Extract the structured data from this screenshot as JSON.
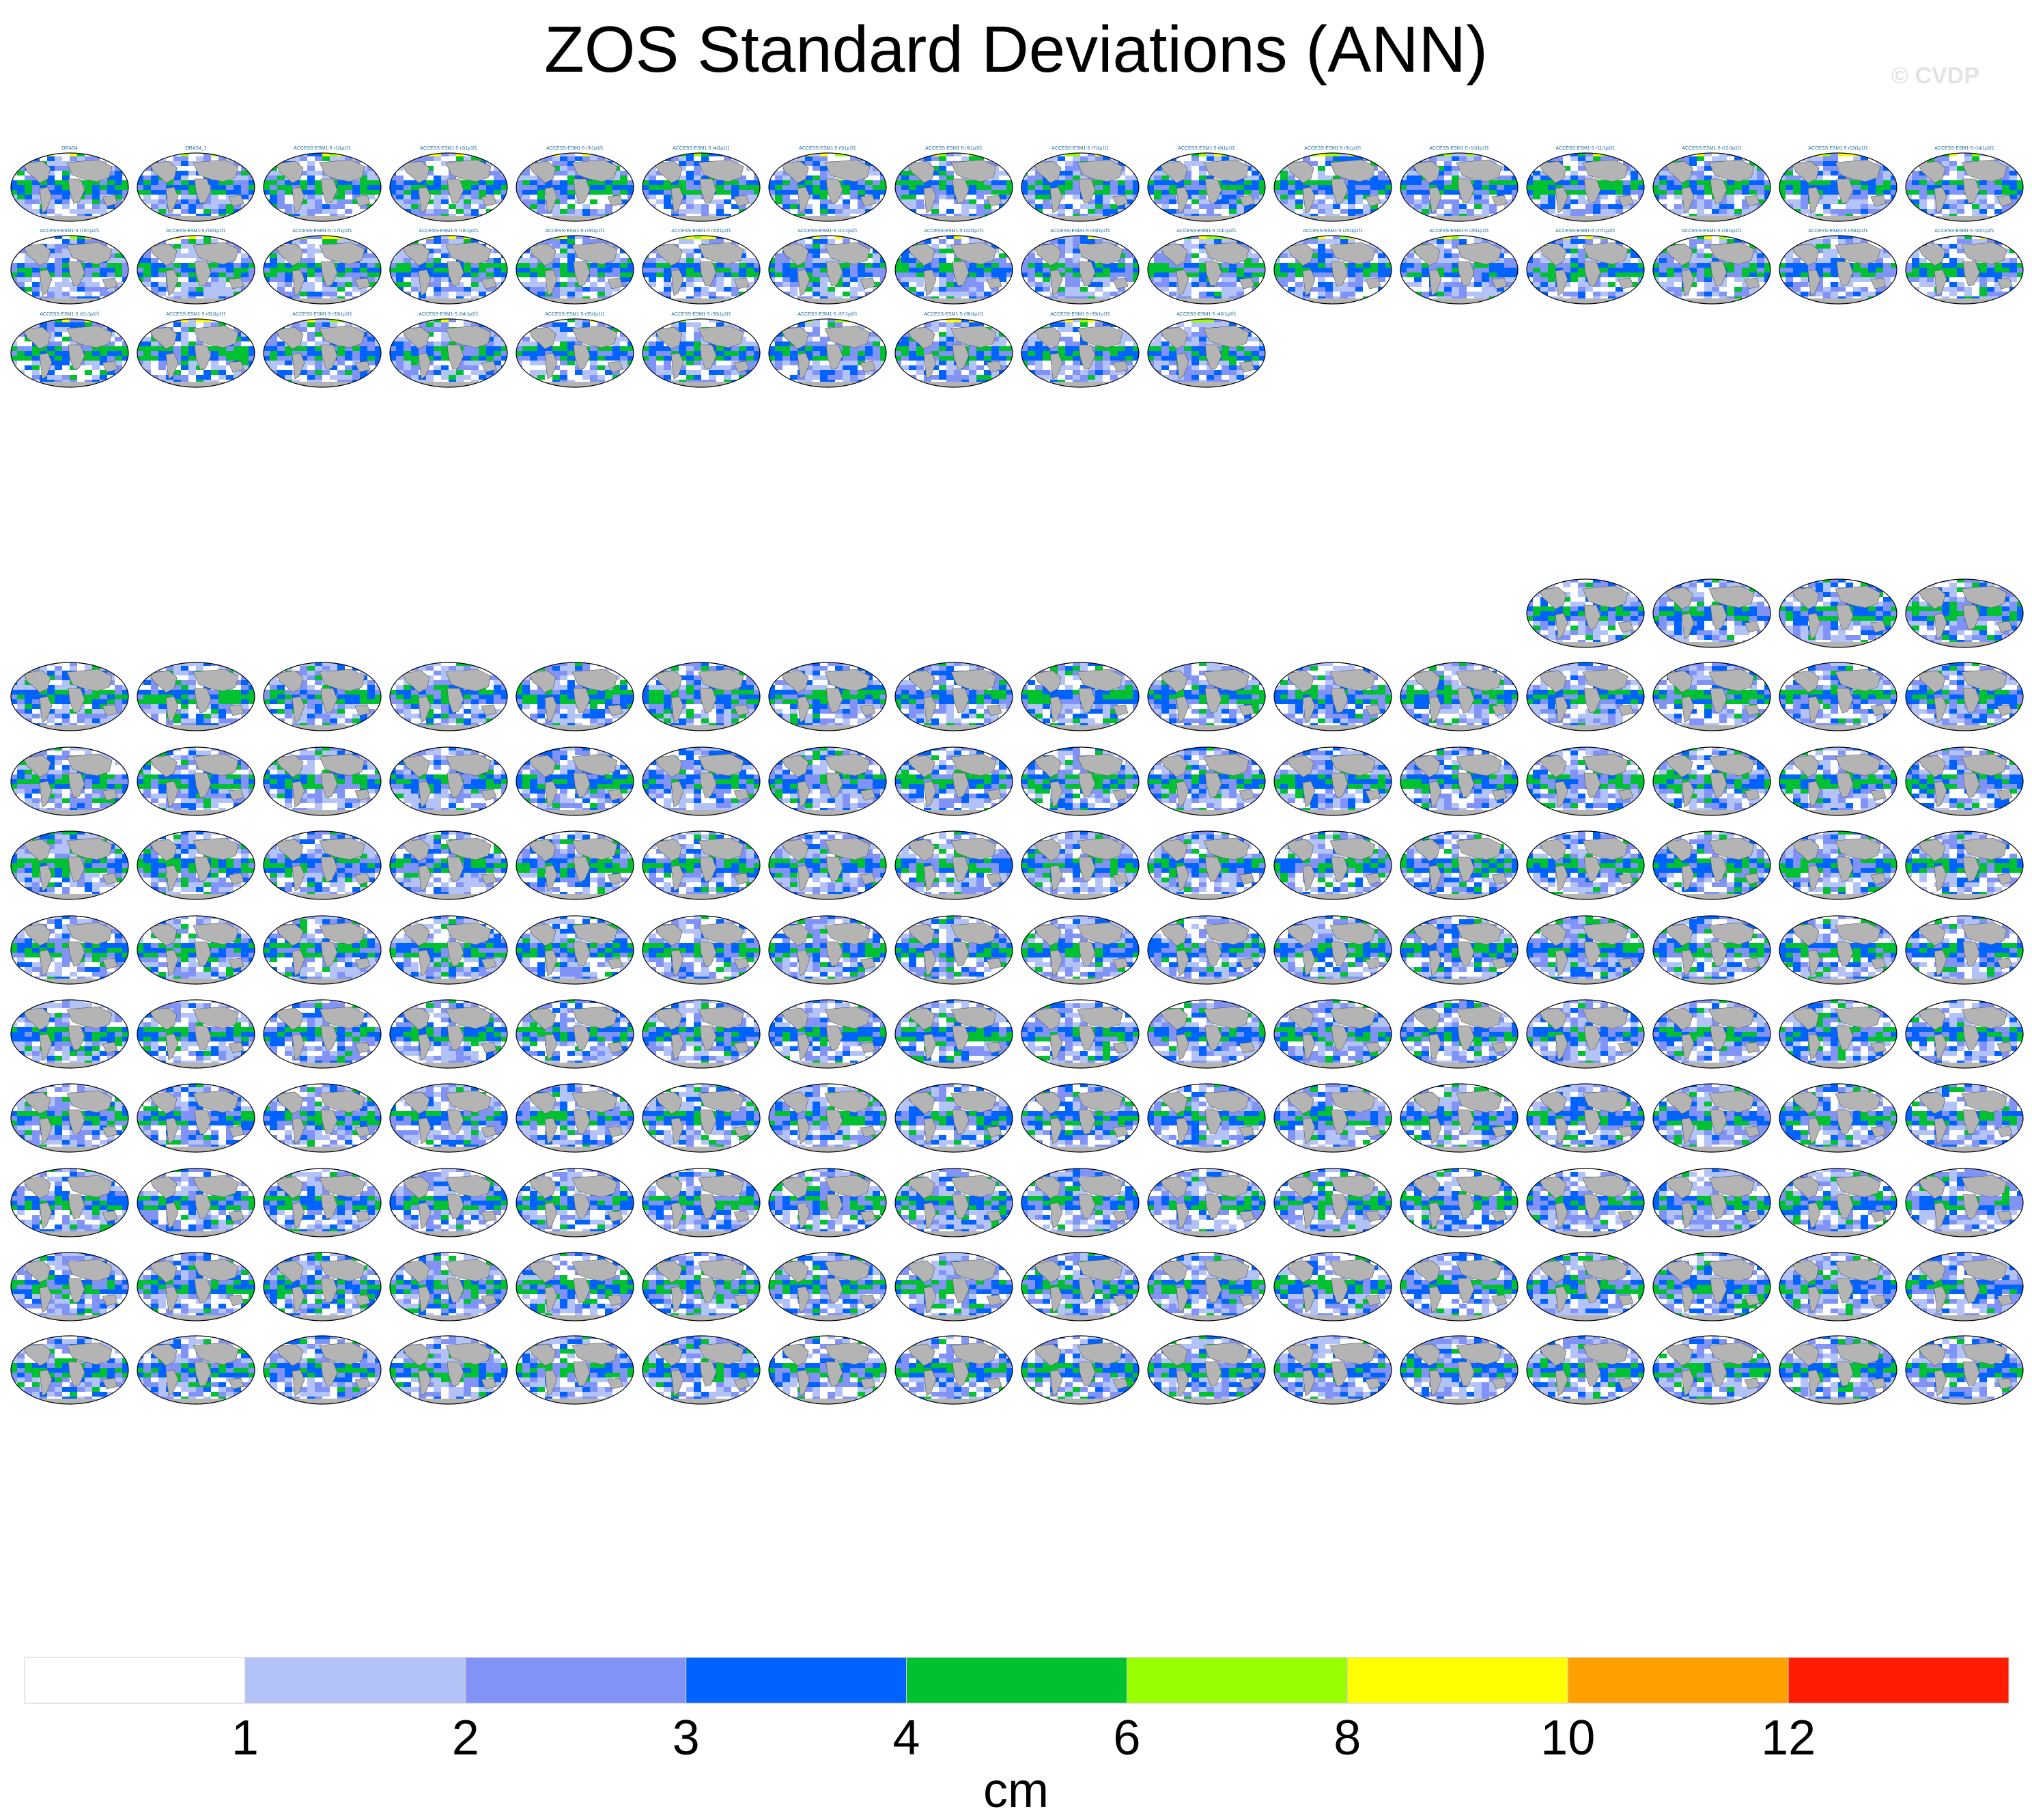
{
  "title": "ZOS Standard Deviations (ANN)",
  "credit": "© CVDP",
  "chart_data": {
    "type": "heatmap",
    "title": "ZOS Standard Deviations (ANN)",
    "panel_map": "global ocean sea-surface-height standard deviation (annual)",
    "colorbar": {
      "label": "cm",
      "ticks": [
        1,
        2,
        3,
        4,
        6,
        8,
        10,
        12
      ],
      "bins": [
        {
          "range": "<1",
          "color": "#ffffff"
        },
        {
          "range": "1-2",
          "color": "#b3c3f7"
        },
        {
          "range": "2-3",
          "color": "#8193f7"
        },
        {
          "range": "3-4",
          "color": "#0062ff"
        },
        {
          "range": "4-6",
          "color": "#00c230"
        },
        {
          "range": "6-8",
          "color": "#98ff00"
        },
        {
          "range": "8-10",
          "color": "#ffff00"
        },
        {
          "range": "10-12",
          "color": "#ffa000"
        },
        {
          "range": ">12",
          "color": "#ff1c00"
        }
      ]
    },
    "panel_groups": [
      {
        "rows": [
          {
            "count": 16,
            "labels": [
              "ORAS4",
              "ORAS4_1",
              "ACCESS-ESM1-5 r1i1p1f1",
              "ACCESS-ESM1-5 r2i1p1f1",
              "ACCESS-ESM1-5 r3i1p1f1",
              "ACCESS-ESM1-5 r4i1p1f1",
              "ACCESS-ESM1-5 r5i1p1f1",
              "ACCESS-ESM1-5 r6i1p1f1",
              "ACCESS-ESM1-5 r7i1p1f1",
              "ACCESS-ESM1-5 r8i1p1f1",
              "ACCESS-ESM1-5 r9i1p1f1",
              "ACCESS-ESM1-5 r10i1p1f1",
              "ACCESS-ESM1-5 r11i1p1f1",
              "ACCESS-ESM1-5 r12i1p1f1",
              "ACCESS-ESM1-5 r13i1p1f1",
              "ACCESS-ESM1-5 r14i1p1f1"
            ]
          },
          {
            "count": 16,
            "labels": [
              "ACCESS-ESM1-5 r15i1p1f1",
              "ACCESS-ESM1-5 r16i1p1f1",
              "ACCESS-ESM1-5 r17i1p1f1",
              "ACCESS-ESM1-5 r18i1p1f1",
              "ACCESS-ESM1-5 r19i1p1f1",
              "ACCESS-ESM1-5 r20i1p1f1",
              "ACCESS-ESM1-5 r21i1p1f1",
              "ACCESS-ESM1-5 r22i1p1f1",
              "ACCESS-ESM1-5 r23i1p1f1",
              "ACCESS-ESM1-5 r24i1p1f1",
              "ACCESS-ESM1-5 r25i1p1f1",
              "ACCESS-ESM1-5 r26i1p1f1",
              "ACCESS-ESM1-5 r27i1p1f1",
              "ACCESS-ESM1-5 r28i1p1f1",
              "ACCESS-ESM1-5 r29i1p1f1",
              "ACCESS-ESM1-5 r30i1p1f1"
            ]
          },
          {
            "count": 10,
            "labels": [
              "ACCESS-ESM1-5 r31i1p1f1",
              "ACCESS-ESM1-5 r32i1p1f1",
              "ACCESS-ESM1-5 r33i1p1f1",
              "ACCESS-ESM1-5 r34i1p1f1",
              "ACCESS-ESM1-5 r35i1p1f1",
              "ACCESS-ESM1-5 r36i1p1f1",
              "ACCESS-ESM1-5 r37i1p1f1",
              "ACCESS-ESM1-5 r38i1p1f1",
              "ACCESS-ESM1-5 r39i1p1f1",
              "ACCESS-ESM1-5 r40i1p1f1"
            ]
          }
        ]
      },
      {
        "rows": [
          {
            "count": 4,
            "labels": []
          },
          {
            "count": 16,
            "labels": []
          },
          {
            "count": 16,
            "labels": []
          },
          {
            "count": 16,
            "labels": []
          },
          {
            "count": 16,
            "labels": []
          },
          {
            "count": 16,
            "labels": []
          },
          {
            "count": 16,
            "labels": []
          },
          {
            "count": 16,
            "labels": []
          },
          {
            "count": 16,
            "labels": []
          },
          {
            "count": 16,
            "labels": []
          }
        ]
      }
    ]
  }
}
